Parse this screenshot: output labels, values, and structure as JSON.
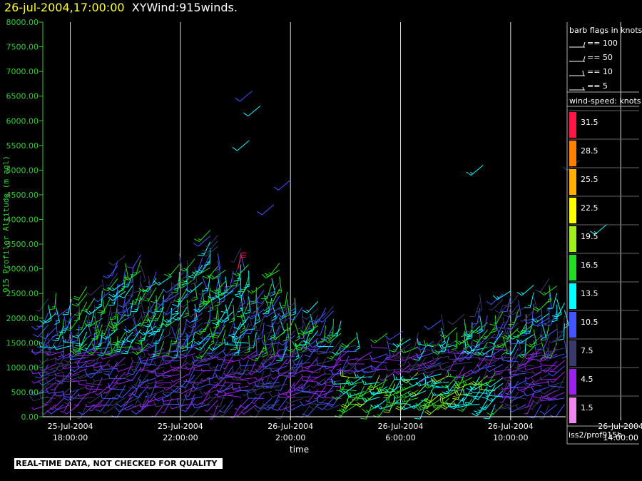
{
  "header": {
    "datetime": "26-jul-2004,17:00:00",
    "product": "XYWind:915winds."
  },
  "notice": "REAL-TIME DATA, NOT CHECKED FOR QUALITY",
  "source_label": "iss2/prof915h",
  "colors": {
    "axis_green": "#33cc33",
    "title_yellow": "#ffff33",
    "background": "#000000",
    "gridline": "#ffffff"
  },
  "legend": {
    "barb_title": "barb flags in knots",
    "barb_items": [
      "== 100",
      "== 50",
      "== 10",
      "== 5"
    ],
    "speed_title": "wind-speed: knots",
    "speed_bins": [
      {
        "label": "31.5",
        "color": "#ff1744"
      },
      {
        "label": "28.5",
        "color": "#ff8000"
      },
      {
        "label": "25.5",
        "color": "#ffb000"
      },
      {
        "label": "22.5",
        "color": "#ffff00"
      },
      {
        "label": "19.5",
        "color": "#a0f020"
      },
      {
        "label": "16.5",
        "color": "#22dd22"
      },
      {
        "label": "13.5",
        "color": "#00ffff"
      },
      {
        "label": "10.5",
        "color": "#4455ff"
      },
      {
        "label": "7.5",
        "color": "#3a3a6a"
      },
      {
        "label": "4.5",
        "color": "#9922ee"
      },
      {
        "label": "1.5",
        "color": "#ee88ee"
      }
    ]
  },
  "chart_data": {
    "type": "wind-barb time-height",
    "xlabel": "time",
    "ylabel": "915 Profiler Altitude (m agl)",
    "ylim": [
      0,
      8000
    ],
    "yticks": [
      "0.00",
      "500.00",
      "1000.00",
      "1500.00",
      "2000.00",
      "2500.00",
      "3000.00",
      "3500.00",
      "4000.00",
      "4500.00",
      "5000.00",
      "5500.00",
      "6000.00",
      "6500.00",
      "7000.00",
      "7500.00",
      "8000.00"
    ],
    "xticks": [
      {
        "date": "25-Jul-2004",
        "time": "18:00:00"
      },
      {
        "date": "25-Jul-2004",
        "time": "22:00:00"
      },
      {
        "date": "26-Jul-2004",
        "time": "2:00:00"
      },
      {
        "date": "26-Jul-2004",
        "time": "6:00:00"
      },
      {
        "date": "26-Jul-2004",
        "time": "10:00:00"
      },
      {
        "date": "26-Jul-2004",
        "time": "14:00:00"
      }
    ],
    "xrange_hours": [
      17,
      36
    ],
    "grid": "vertical lines at labeled times"
  }
}
